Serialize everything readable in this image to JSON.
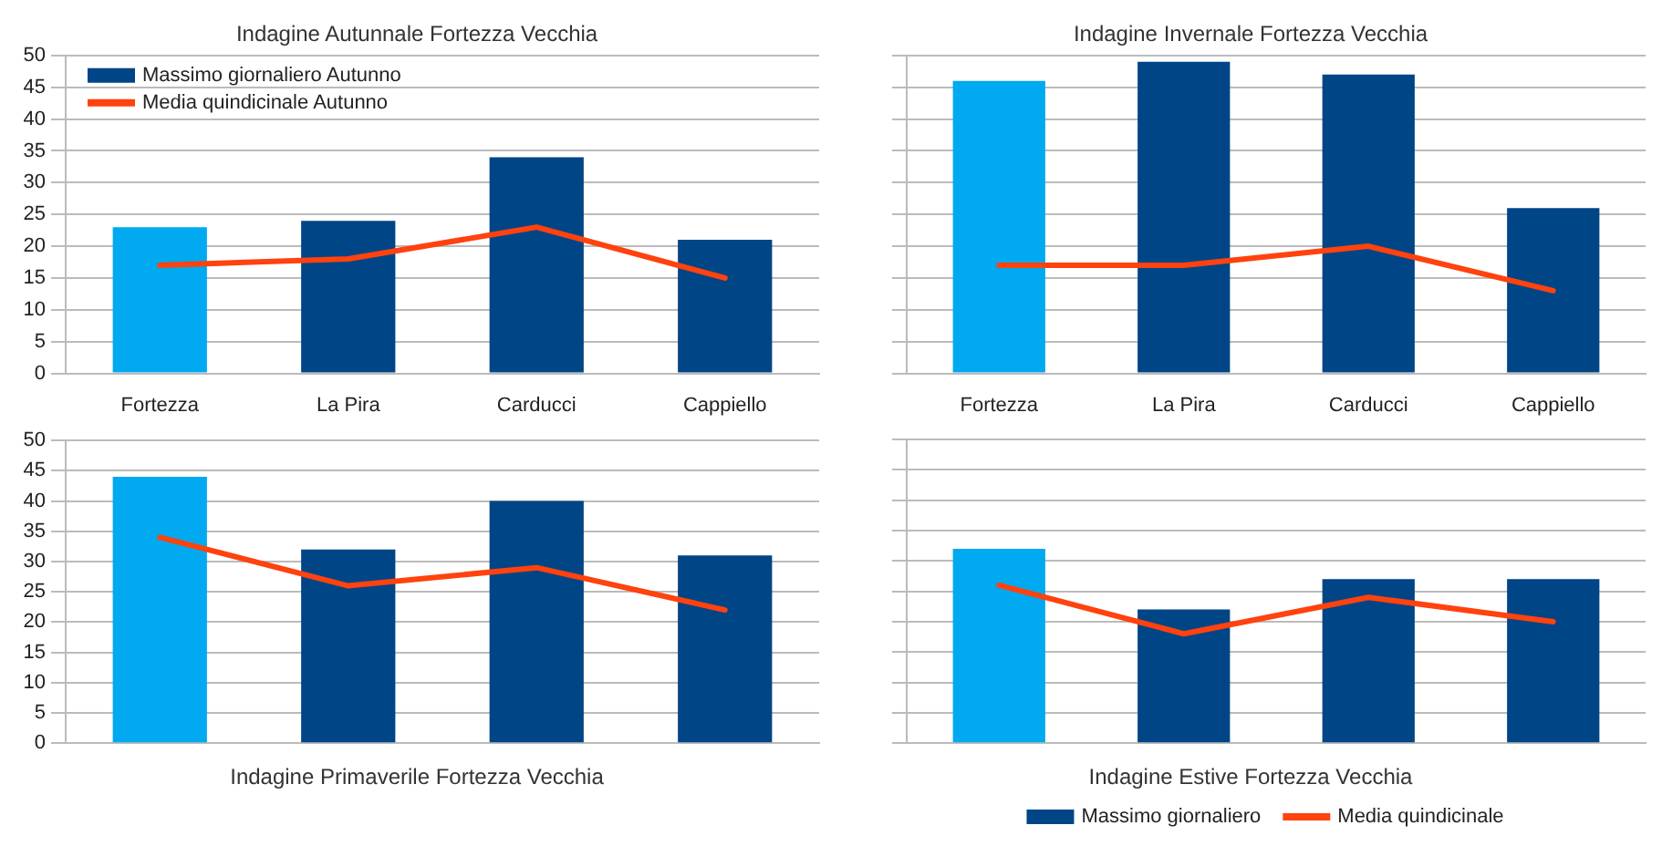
{
  "chart_data": [
    {
      "type": "bar",
      "title": "Indagine Autunnale Fortezza Vecchia",
      "categories": [
        "Fortezza",
        "La Pira",
        "Carducci",
        "Cappiello"
      ],
      "series": [
        {
          "name": "Massimo giornaliero Autunno",
          "color": "#004586",
          "colors": [
            "#00a9f0",
            "#004586",
            "#004586",
            "#004586"
          ],
          "values": [
            23,
            24,
            34,
            21
          ]
        },
        {
          "name": "Media quindicinale Autunno",
          "type": "line",
          "color": "#ff420e",
          "values": [
            17,
            18,
            23,
            15
          ]
        }
      ],
      "ylim": [
        0,
        50
      ],
      "yticks": [
        0,
        5,
        10,
        15,
        20,
        25,
        30,
        35,
        40,
        45,
        50
      ],
      "grid": "y",
      "legend": "top left",
      "marker": "none"
    },
    {
      "type": "bar",
      "title": "Indagine Invernale Fortezza Vecchia",
      "categories": [
        "Fortezza",
        "La Pira",
        "Carducci",
        "Cappiello"
      ],
      "series": [
        {
          "colors": [
            "#00a9f0",
            "#004586",
            "#004586",
            "#004586"
          ],
          "values": [
            46,
            49,
            47,
            26
          ]
        },
        {
          "type": "line",
          "color": "#ff420e",
          "values": [
            17,
            17,
            20,
            13
          ]
        }
      ],
      "ylim": [
        0,
        50
      ],
      "yticks": [
        0,
        5,
        10,
        15,
        20,
        25,
        30,
        35,
        40,
        45,
        50
      ],
      "grid": "y",
      "tick_labels": "x",
      "marker": "none"
    },
    {
      "type": "bar",
      "title": "Indagine Primaverile Fortezza Vecchia",
      "categories": [
        null,
        null,
        null,
        null
      ],
      "series": [
        {
          "colors": [
            "#00a9f0",
            "#004586",
            "#004586",
            "#004586"
          ],
          "values": [
            44,
            32,
            40,
            31
          ]
        },
        {
          "type": "line",
          "color": "#ff420e",
          "values": [
            34,
            26,
            29,
            22
          ]
        }
      ],
      "ylim": [
        0,
        50
      ],
      "yticks": [
        0,
        5,
        10,
        15,
        20,
        25,
        30,
        35,
        40,
        45,
        50
      ],
      "grid": "y",
      "tick_labels": "y",
      "marker": "none"
    },
    {
      "type": "bar",
      "title": "Indagine Estive Fortezza Vecchia",
      "categories": [
        null,
        null,
        null,
        null
      ],
      "series": [
        {
          "name": "Massimo giornaliero",
          "color": "#004586",
          "colors": [
            "#00a9f0",
            "#004586",
            "#004586",
            "#004586"
          ],
          "values": [
            32,
            22,
            27,
            27
          ]
        },
        {
          "name": "Media quindicinale",
          "type": "line",
          "color": "#ff420e",
          "values": [
            26,
            18,
            24,
            20
          ]
        }
      ],
      "ylim": [
        0,
        50
      ],
      "yticks": [
        0,
        5,
        10,
        15,
        20,
        25,
        30,
        35,
        40,
        45,
        50
      ],
      "grid": "y",
      "tick_labels": false,
      "legend": "bottom",
      "marker": "none"
    }
  ]
}
